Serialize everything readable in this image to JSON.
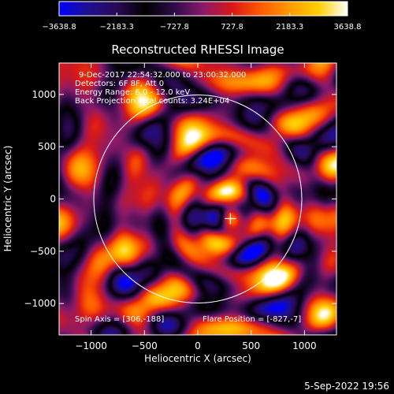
{
  "colorbar": {
    "tick_labels": [
      "−3638.8",
      "−2183.3",
      "−727.8",
      "727.8",
      "2183.3",
      "3638.8"
    ],
    "min": -3638.8,
    "max": 3638.8,
    "colors": [
      "#0000ff",
      "#1e1090",
      "#2a0a55",
      "#000000",
      "#2e0c4a",
      "#8a1a6a",
      "#d81818",
      "#ff5a00",
      "#ff9a00",
      "#ffd000",
      "#ffffff"
    ]
  },
  "image": {
    "title": "Reconstructed RHESSI Image",
    "annotations": {
      "time": "9-Dec-2017 22:54:32.000 to 23:00:32.000",
      "detectors": "Detectors: 6F 8F, Att 0",
      "energy": "Energy Range: 6.0 - 12.0 keV",
      "method": "Back Projection   Total counts: 3.24E+04",
      "spin_axis": "Spin Axis = [306,-188]",
      "flare_position": "Flare Position = [-827,-7]"
    },
    "xlabel": "Heliocentric X (arcsec)",
    "ylabel": "Heliocentric Y (arcsec)",
    "xlim": [
      -1300,
      1300
    ],
    "ylim": [
      -1300,
      1300
    ],
    "x_ticks": [
      -1000,
      -500,
      0,
      500,
      1000
    ],
    "y_ticks": [
      -1000,
      -500,
      0,
      500,
      1000
    ],
    "x_tick_labels": [
      "−1000",
      "−500",
      "0",
      "500",
      "1000"
    ],
    "y_tick_labels": [
      "−1000",
      "−500",
      "0",
      "500",
      "1000"
    ],
    "solar_limb_radius": 975,
    "limb_color": "#ffffff",
    "marker": [
      306,
      -188
    ]
  },
  "footer": {
    "date": "5-Sep-2022 19:56"
  },
  "chart_data": {
    "type": "heatmap",
    "title": "Reconstructed RHESSI Image",
    "xlabel": "Heliocentric X (arcsec)",
    "ylabel": "Heliocentric Y (arcsec)",
    "xlim": [
      -1300,
      1300
    ],
    "ylim": [
      -1300,
      1300
    ],
    "value_range": [
      -3638.8,
      3638.8
    ],
    "grid": false,
    "legend": "colorbar top"
  }
}
